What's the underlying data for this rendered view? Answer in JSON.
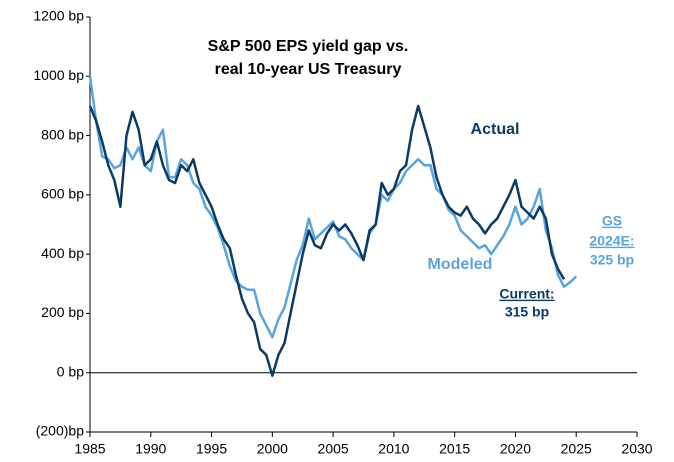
{
  "chart_data": {
    "type": "line",
    "title": [
      "S&P 500 EPS yield gap vs.",
      "real 10-year US Treasury"
    ],
    "x": [
      1985,
      1985.5,
      1986,
      1986.5,
      1987,
      1987.5,
      1988,
      1988.5,
      1989,
      1989.5,
      1990,
      1990.5,
      1991,
      1991.5,
      1992,
      1992.5,
      1993,
      1993.5,
      1994,
      1994.5,
      1995,
      1995.5,
      1996,
      1996.5,
      1997,
      1997.5,
      1998,
      1998.5,
      1999,
      1999.5,
      2000,
      2000.5,
      2001,
      2001.5,
      2002,
      2002.5,
      2003,
      2003.5,
      2004,
      2004.5,
      2005,
      2005.5,
      2006,
      2006.5,
      2007,
      2007.5,
      2008,
      2008.5,
      2009,
      2009.5,
      2010,
      2010.5,
      2011,
      2011.5,
      2012,
      2012.5,
      2013,
      2013.5,
      2014,
      2014.5,
      2015,
      2015.5,
      2016,
      2016.5,
      2017,
      2017.5,
      2018,
      2018.5,
      2019,
      2019.5,
      2020,
      2020.5,
      2021,
      2021.5,
      2022,
      2022.5,
      2023,
      2023.5,
      2024,
      2024.5,
      2025
    ],
    "series": [
      {
        "name": "Actual",
        "color": "#0b3a63",
        "values": [
          900,
          850,
          780,
          700,
          650,
          560,
          800,
          880,
          820,
          700,
          720,
          780,
          700,
          650,
          640,
          700,
          680,
          720,
          640,
          600,
          560,
          500,
          450,
          420,
          330,
          250,
          200,
          170,
          80,
          60,
          -10,
          60,
          100,
          200,
          300,
          400,
          480,
          430,
          420,
          470,
          500,
          480,
          500,
          470,
          430,
          380,
          480,
          500,
          640,
          600,
          620,
          680,
          700,
          820,
          900,
          830,
          760,
          660,
          600,
          560,
          540,
          530,
          560,
          520,
          500,
          470,
          500,
          520,
          560,
          600,
          650,
          560,
          540,
          520,
          560,
          520,
          400,
          350,
          315,
          null,
          null
        ]
      },
      {
        "name": "Modeled",
        "color": "#5ba3dd",
        "values": [
          1000,
          850,
          730,
          720,
          690,
          700,
          760,
          720,
          760,
          700,
          680,
          780,
          820,
          660,
          660,
          720,
          700,
          640,
          620,
          560,
          530,
          490,
          430,
          360,
          310,
          290,
          280,
          280,
          200,
          160,
          120,
          180,
          220,
          300,
          380,
          430,
          520,
          450,
          470,
          490,
          510,
          460,
          450,
          420,
          400,
          380,
          470,
          500,
          600,
          580,
          620,
          640,
          680,
          700,
          720,
          700,
          700,
          620,
          600,
          550,
          530,
          480,
          460,
          440,
          420,
          430,
          400,
          430,
          460,
          500,
          560,
          500,
          520,
          560,
          620,
          480,
          420,
          330,
          290,
          305,
          325
        ]
      }
    ],
    "annotations": [
      {
        "text": "Actual",
        "color": "#0b3a63"
      },
      {
        "text": "Modeled",
        "color": "#5ba3dd"
      },
      {
        "text": "Current:",
        "color": "#0b3a63"
      },
      {
        "text": "315 bp",
        "color": "#0b3a63"
      },
      {
        "text": "GS",
        "color": "#5ba3dd"
      },
      {
        "text": "2024E:",
        "color": "#5ba3dd"
      },
      {
        "text": "325 bp",
        "color": "#5ba3dd"
      }
    ],
    "xlim": [
      1985,
      2030
    ],
    "xticks": [
      1985,
      1990,
      1995,
      2000,
      2005,
      2010,
      2015,
      2020,
      2025,
      2030
    ],
    "ylim": [
      -200,
      1200
    ],
    "yticks": [
      {
        "value": -200,
        "label": "(200)bp"
      },
      {
        "value": 0,
        "label": "0 bp"
      },
      {
        "value": 200,
        "label": "200 bp"
      },
      {
        "value": 400,
        "label": "400 bp"
      },
      {
        "value": 600,
        "label": "600 bp"
      },
      {
        "value": 800,
        "label": "800 bp"
      },
      {
        "value": 1000,
        "label": "1000 bp"
      },
      {
        "value": 1200,
        "label": "1200 bp"
      }
    ]
  }
}
